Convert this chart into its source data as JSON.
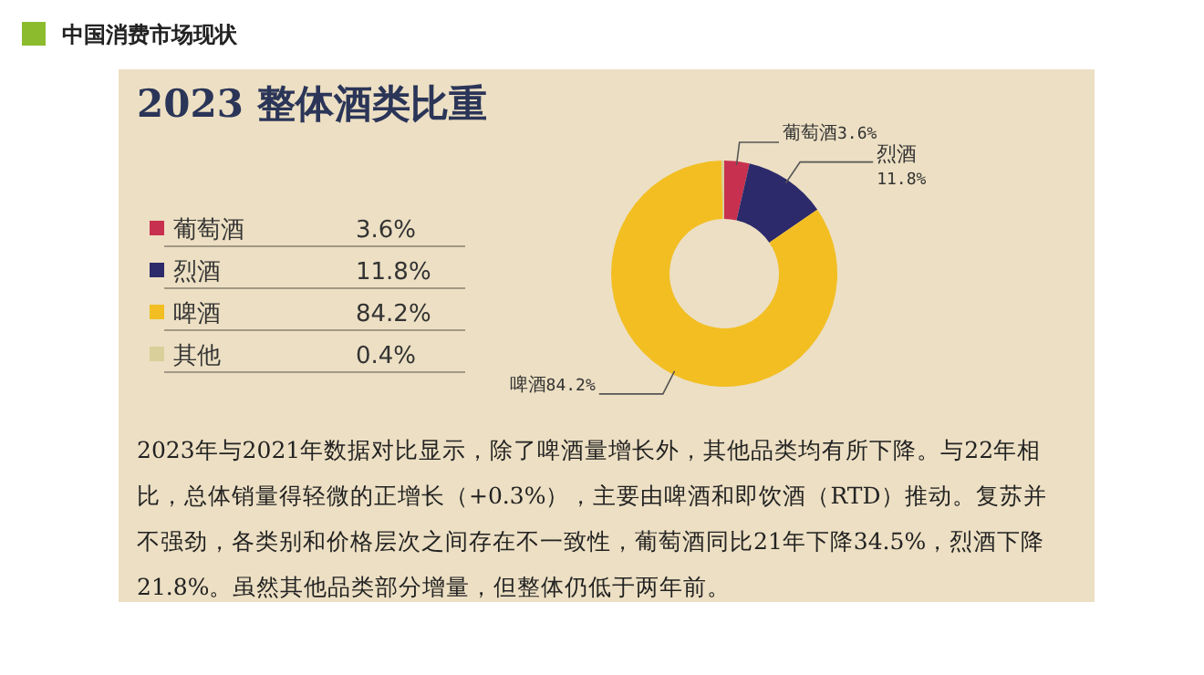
{
  "chart_data": {
    "type": "donut",
    "title": "2023 整体酒类比重",
    "subtitle": "中国消费市场现状",
    "categories": [
      "葡萄酒",
      "烈酒",
      "啤酒",
      "其他"
    ],
    "values": [
      3.6,
      11.8,
      84.2,
      0.4
    ],
    "value_labels": [
      "3.6%",
      "11.8%",
      "84.2%",
      "0.4%"
    ],
    "colors": [
      "#c8304f",
      "#2c2a6b",
      "#f2be22",
      "#d8cf9a"
    ],
    "legend": "left",
    "annotations": [
      "2023年与2021年数据对比显示，除了啤酒量增长外，其他品类均有所下降。与22年相比，总体销量得轻微的正增长（+0.3%），主要由啤酒和即饮酒（RTD）推动。复苏并不强劲，各类别和价格层次之间存在不一致性，葡萄酒同比21年下降34.5%，烈酒下降21.8%。虽然其他品类部分增量，但整体仍低于两年前。"
    ]
  }
}
